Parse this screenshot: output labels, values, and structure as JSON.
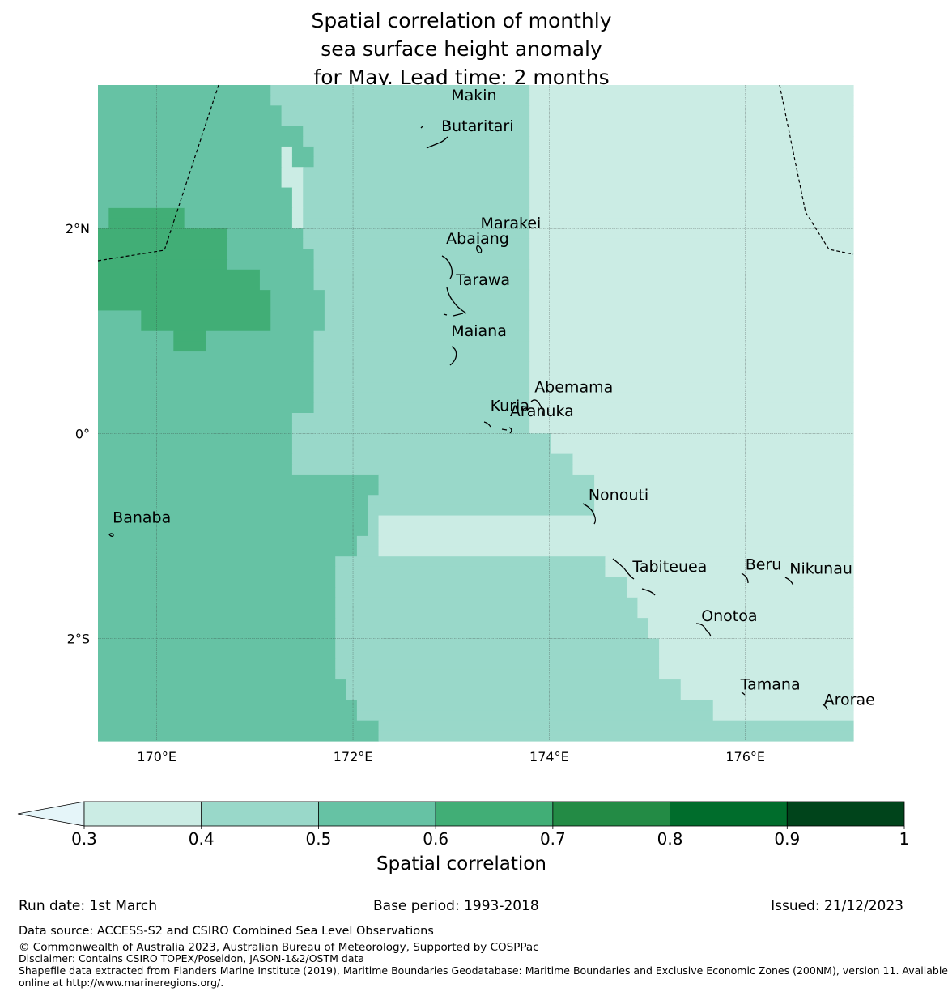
{
  "title": {
    "line1": "Spatial correlation of monthly",
    "line2": "sea surface height anomaly",
    "line3": "for May. Lead time: 2 months"
  },
  "map": {
    "lon_range": [
      169.4,
      177.1
    ],
    "lat_range": [
      -3.0,
      3.4
    ],
    "x_ticks": [
      {
        "lon": 170,
        "label": "170°E"
      },
      {
        "lon": 172,
        "label": "172°E"
      },
      {
        "lon": 174,
        "label": "174°E"
      },
      {
        "lon": 176,
        "label": "176°E"
      }
    ],
    "y_ticks": [
      {
        "lat": 2,
        "label": "2°N"
      },
      {
        "lat": 0,
        "label": "0°"
      },
      {
        "lat": -2,
        "label": "2°S"
      }
    ],
    "islands": [
      {
        "name": "Makin",
        "lon": 173.0,
        "lat": 3.25
      },
      {
        "name": "Butaritari",
        "lon": 172.9,
        "lat": 2.95
      },
      {
        "name": "Marakei",
        "lon": 173.3,
        "lat": 2.0
      },
      {
        "name": "Abaiang",
        "lon": 172.95,
        "lat": 1.85
      },
      {
        "name": "Tarawa",
        "lon": 173.05,
        "lat": 1.45
      },
      {
        "name": "Maiana",
        "lon": 173.0,
        "lat": 0.95
      },
      {
        "name": "Abemama",
        "lon": 173.85,
        "lat": 0.4
      },
      {
        "name": "Kuria",
        "lon": 173.4,
        "lat": 0.22
      },
      {
        "name": "Aranuka",
        "lon": 173.6,
        "lat": 0.17
      },
      {
        "name": "Nonouti",
        "lon": 174.4,
        "lat": -0.65
      },
      {
        "name": "Banaba",
        "lon": 169.55,
        "lat": -0.87
      },
      {
        "name": "Tabiteuea",
        "lon": 174.85,
        "lat": -1.35
      },
      {
        "name": "Beru",
        "lon": 176.0,
        "lat": -1.33
      },
      {
        "name": "Nikunau",
        "lon": 176.45,
        "lat": -1.37
      },
      {
        "name": "Onotoa",
        "lon": 175.55,
        "lat": -1.83
      },
      {
        "name": "Tamana",
        "lon": 175.95,
        "lat": -2.5
      },
      {
        "name": "Arorae",
        "lon": 176.8,
        "lat": -2.65
      }
    ],
    "grid_rows": [
      "3333333333333333222222222222222222222222111111111111111111111111111111",
      "3333333333333333222222222222222222222222111111111111111111111111111111",
      "3333333333333333322222222222222222222222111111111111111111111111111111",
      "3333333333333333322222222222222222222222111111111111111111111111111111",
      "3333333333333333333222222222222222222222111111111111111111111111111111",
      "3333333333333333333222222222222222222222111111111111111111111111111111",
      "3333333333333333313322222222222222222222111111111111111111111111111111",
      "3333333333333333313322222222222222222222111111111111111111111111111111",
      "3333333333333333311222222222222222222222111111111111111111111111111111",
      "3333333333333333311222222222222222222222111111111111111111111111111111",
      "3333333333333333331222222222222222222222111111111111111111111111111111",
      "3333333333333333331222222222222222222222111111111111111111111111111111",
      "3444444433333333331222222222222222222222111111111111111111111111111111",
      "3444444433333333331222222222222222222222111111111111111111111111111111",
      "4444444444443333333222222222222222222222111111111111111111111111111111",
      "4444444444443333333222222222222222222222111111111111111111111111111111",
      "4444444444443333333322222222222222222222111111111111111111111111111111",
      "4444444444443333333322222222222222222222111111111111111111111111111111",
      "4444444444444443333322222222222222222222111111111111111111111111111111",
      "4444444444444443333322222222222222222222111111111111111111111111111111",
      "4444444444444444333332222222222222222222111111111111111111111111111111",
      "4444444444444444333332222222222222222222111111111111111111111111111111",
      "3333444444444444333332222222222222222222111111111111111111111111111111",
      "3333444444444444333332222222222222222222111111111111111111111111111111",
      "3333333444333333333322222222222222222222111111111111111111111111111111",
      "3333333444333333333322222222222222222222111111111111111111111111111111",
      "3333333333333333333322222222222222222222111111111111111111111111111111",
      "3333333333333333333322222222222222222222111111111111111111111111111111",
      "3333333333333333333322222222222222222222111111111111111111111111111111",
      "3333333333333333333322222222222222222222111111111111111111111111111111",
      "3333333333333333333322222222222222222222111111111111111111111111111111",
      "3333333333333333333322222222222222222222111111111111111111111111111111",
      "3333333333333333332222222222222222222222111111111111111111111111111111",
      "3333333333333333332222222222222222222222111111111111111111111111111111",
      "3333333333333333332222222222222222222222221111111111111111111111111111",
      "3333333333333333332222222222222222222222221111111111111111111111111111",
      "3333333333333333332222222222222222222222222211111111111111111111111111",
      "3333333333333333332222222222222222222222222211111111111111111111111111",
      "3333333333333333333333333322222222222222222222111111111111111111111111",
      "3333333333333333333333333322222222222222222222111111111111111111111111",
      "3333333333333333333333333222222222222222222222111111111111111111111111",
      "3333333333333333333333333222222222222222222222111111111111111111111111",
      "3333333333333333333333333211111111111111111111111111111111111111111111",
      "3333333333333333333333333211111111111111111111111111111111111111111111",
      "3333333333333333333333332211111111111111111111111111111111111111111111",
      "3333333333333333333333332211111111111111111111111111111111111111111111",
      "3333333333333333333333222222222222222222222222211111111111111111111111",
      "3333333333333333333333222222222222222222222222211111111111111111111111",
      "3333333333333333333333222222222222222222222222222111111111111111111111",
      "3333333333333333333333222222222222222222222222222111111111111111111111",
      "3333333333333333333333222222222222222222222222222211111111111111111111",
      "3333333333333333333333222222222222222222222222222211111111111111111111",
      "3333333333333333333333222222222222222222222222222221111111111111111111",
      "3333333333333333333333222222222222222222222222222221111111111111111111",
      "3333333333333333333333222222222222222222222222222222111111111111111111",
      "3333333333333333333333222222222222222222222222222222111111111111111111",
      "3333333333333333333333222222222222222222222222222222111111111111111111",
      "3333333333333333333333222222222222222222222222222222111111111111111111",
      "3333333333333333333333322222222222222222222222222222221111111111111111",
      "3333333333333333333333322222222222222222222222222222221111111111111111",
      "3333333333333333333333332222222222222222222222222222222221111111111111",
      "3333333333333333333333332222222222222222222222222222222221111111111111",
      "3333333333333333333333333322222222222222222222222222222222222222222222",
      "3333333333333333333333333322222222222222222222222222222222222222222222"
    ],
    "grid_colors": {
      "1": "#cbece4",
      "2": "#99d8c9",
      "3": "#66c2a4",
      "4": "#41ae76"
    },
    "boundary_color": "#000000"
  },
  "colorbar": {
    "ticks": [
      "0.3",
      "0.4",
      "0.5",
      "0.6",
      "0.7",
      "0.8",
      "0.9",
      "1"
    ],
    "colors": [
      "#cbece4",
      "#99d8c9",
      "#66c2a4",
      "#41ae76",
      "#238b45",
      "#006d2c",
      "#00441b"
    ],
    "under_color": "#e5f5f9",
    "label": "Spatial correlation"
  },
  "footer": {
    "run_date": "Run date: 1st March",
    "base_period": "Base period: 1993-2018",
    "issued": "Issued: 21/12/2023",
    "data_source": "Data source: ACCESS-S2 and CSIRO Combined Sea Level Observations",
    "copyright": "© Commonwealth of Australia 2023, Australian Bureau of Meteorology, Supported by COSPPac",
    "disclaimer": "Disclaimer: Contains CSIRO TOPEX/Poseidon, JASON-1&2/OSTM data",
    "shapefile_1": "Shapefile data extracted from Flanders Marine Institute (2019), Maritime Boundaries Geodatabase: Maritime Boundaries and Exclusive Economic Zones (200NM), version 11. Available",
    "shapefile_2": "online at http://www.marineregions.org/."
  }
}
